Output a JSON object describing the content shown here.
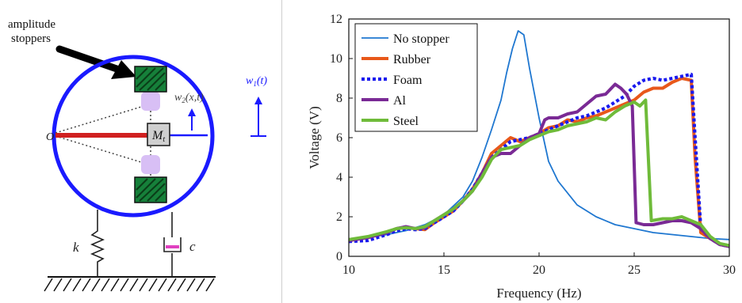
{
  "diagram": {
    "callout_line1": "amplitude",
    "callout_line2": "stoppers",
    "mass_label": "M",
    "mass_subscript": "t",
    "w2_label": "w",
    "w2_subscript": "2",
    "w2_arg": "(x,t)",
    "w1_label": "w",
    "w1_subscript": "1",
    "w1_arg": "(t)",
    "spring_label": "k",
    "damper_label": "c",
    "origin_label": "O",
    "colors": {
      "ring": "#1a1aff",
      "stopper": "#16803a",
      "beam": "#d02020",
      "particle": "#d8bff5",
      "damper_plate": "#e040c0",
      "arrow": "#1a1aff"
    }
  },
  "chart_data": {
    "type": "line",
    "xlabel": "Frequency (Hz)",
    "ylabel": "Voltage (V)",
    "xlim": [
      10,
      30
    ],
    "ylim": [
      0,
      12
    ],
    "xticks": [
      10,
      15,
      20,
      25,
      30
    ],
    "yticks": [
      0,
      2,
      4,
      6,
      8,
      10,
      12
    ],
    "grid": false,
    "legend_position": "top-left",
    "series": [
      {
        "name": "No stopper",
        "color": "#1f77d0",
        "dash": "solid",
        "width": 1.8,
        "x": [
          10,
          11,
          12,
          13,
          14,
          15,
          16,
          16.5,
          17,
          17.5,
          18,
          18.3,
          18.6,
          18.9,
          19.2,
          19.5,
          20,
          20.5,
          21,
          22,
          23,
          24,
          25,
          26,
          27,
          28,
          29,
          30
        ],
        "y": [
          0.85,
          0.95,
          1.1,
          1.3,
          1.6,
          2.1,
          3.0,
          3.8,
          5.0,
          6.4,
          7.9,
          9.3,
          10.5,
          11.4,
          11.2,
          9.5,
          7.0,
          4.8,
          3.8,
          2.6,
          2.0,
          1.6,
          1.4,
          1.2,
          1.1,
          1.0,
          0.9,
          0.85
        ]
      },
      {
        "name": "Rubber",
        "color": "#e8581a",
        "dash": "solid",
        "width": 4,
        "x": [
          10,
          11,
          12,
          12.5,
          13,
          13.5,
          14,
          14.5,
          15,
          15.5,
          16,
          16.5,
          17,
          17.5,
          18,
          18.5,
          19,
          19.5,
          20,
          20.5,
          21,
          21.5,
          22,
          22.5,
          23,
          23.5,
          24,
          24.5,
          25,
          25.5,
          26,
          26.5,
          27,
          27.5,
          28,
          28.2,
          28.5,
          29,
          29.5,
          30
        ],
        "y": [
          0.8,
          0.95,
          1.2,
          1.4,
          1.45,
          1.4,
          1.35,
          1.7,
          2.0,
          2.3,
          2.8,
          3.4,
          4.2,
          5.2,
          5.6,
          6.0,
          5.8,
          6.0,
          6.2,
          6.5,
          6.6,
          6.9,
          6.8,
          7.0,
          7.1,
          7.3,
          7.5,
          7.7,
          7.9,
          8.3,
          8.5,
          8.5,
          8.8,
          9.0,
          8.9,
          5.0,
          1.2,
          0.9,
          0.6,
          0.5
        ]
      },
      {
        "name": "Foam",
        "color": "#1a1aee",
        "dash": "dotted",
        "width": 4.2,
        "x": [
          10,
          11,
          12,
          12.5,
          13,
          13.5,
          14,
          14.5,
          15,
          15.5,
          16,
          16.5,
          17,
          17.5,
          18,
          18.5,
          19,
          19.5,
          20,
          20.5,
          21,
          21.5,
          22,
          22.5,
          23,
          23.5,
          24,
          24.5,
          25,
          25.5,
          26,
          26.5,
          27,
          27.5,
          28,
          28.2,
          28.5,
          29,
          29.5,
          30
        ],
        "y": [
          0.75,
          0.8,
          1.1,
          1.3,
          1.4,
          1.35,
          1.4,
          1.7,
          2.0,
          2.3,
          2.8,
          3.4,
          4.2,
          5.0,
          5.4,
          5.8,
          5.9,
          6.0,
          6.2,
          6.4,
          6.6,
          6.8,
          7.0,
          7.1,
          7.3,
          7.5,
          7.8,
          8.1,
          8.6,
          8.9,
          9.0,
          8.9,
          9.0,
          9.1,
          9.2,
          6.0,
          1.4,
          0.9,
          0.6,
          0.5
        ]
      },
      {
        "name": "Al",
        "color": "#7a2a95",
        "dash": "solid",
        "width": 4,
        "x": [
          10,
          11,
          12,
          12.5,
          13,
          13.5,
          14,
          14.5,
          15,
          15.5,
          16,
          16.5,
          17,
          17.5,
          18,
          18.5,
          19,
          19.5,
          20,
          20.3,
          20.5,
          21,
          21.5,
          22,
          22.5,
          23,
          23.5,
          24,
          24.3,
          24.6,
          24.9,
          25.1,
          25.5,
          26,
          26.5,
          27,
          27.5,
          28,
          28.5,
          29,
          29.5,
          30
        ],
        "y": [
          0.8,
          0.95,
          1.2,
          1.4,
          1.5,
          1.4,
          1.45,
          1.8,
          2.1,
          2.4,
          2.8,
          3.3,
          4.2,
          5.0,
          5.2,
          5.2,
          5.6,
          6.0,
          6.2,
          6.9,
          7.0,
          7.0,
          7.2,
          7.3,
          7.7,
          8.1,
          8.2,
          8.7,
          8.5,
          8.2,
          7.6,
          1.7,
          1.6,
          1.6,
          1.7,
          1.8,
          1.8,
          1.7,
          1.4,
          0.9,
          0.6,
          0.5
        ]
      },
      {
        "name": "Steel",
        "color": "#6fbb3a",
        "dash": "solid",
        "width": 4,
        "x": [
          10,
          11,
          12,
          12.5,
          13,
          13.5,
          14,
          14.5,
          15,
          15.5,
          16,
          16.5,
          17,
          17.5,
          18,
          18.5,
          19,
          19.5,
          20,
          20.5,
          21,
          21.5,
          22,
          22.5,
          23,
          23.5,
          24,
          24.5,
          25,
          25.3,
          25.6,
          25.9,
          26.5,
          27,
          27.5,
          28,
          28.5,
          29,
          29.5,
          30
        ],
        "y": [
          0.85,
          1.0,
          1.25,
          1.4,
          1.45,
          1.4,
          1.5,
          1.8,
          2.1,
          2.4,
          2.8,
          3.3,
          4.0,
          4.9,
          5.4,
          5.5,
          5.6,
          5.9,
          6.1,
          6.3,
          6.4,
          6.6,
          6.7,
          6.8,
          7.0,
          6.9,
          7.3,
          7.6,
          7.8,
          7.6,
          7.9,
          1.8,
          1.9,
          1.9,
          2.0,
          1.8,
          1.6,
          1.0,
          0.65,
          0.55
        ]
      }
    ]
  }
}
